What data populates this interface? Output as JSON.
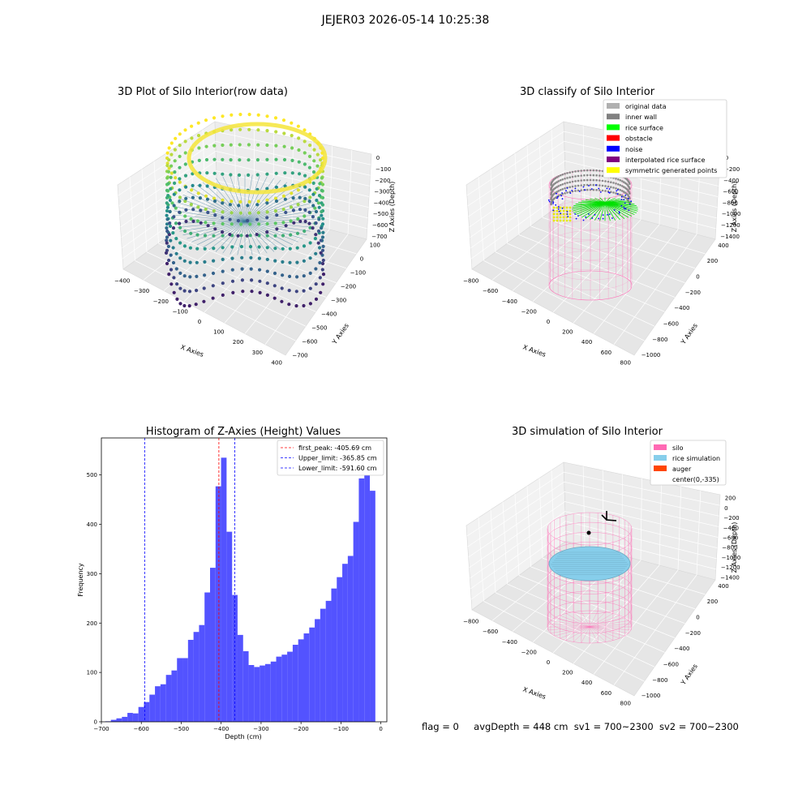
{
  "suptitle": "JEJER03 2026-05-14 10:25:38",
  "colors": {
    "pink": "#ff69b4",
    "skyblue": "#87ceeb",
    "histbar": "#4a4aff",
    "peak_line": "#ff0000",
    "limit_line": "#0000ff",
    "pane": "#f2f2f2"
  },
  "chart_data": [
    {
      "id": "raw",
      "type": "scatter",
      "title": "3D Plot of Silo Interior(row data)",
      "xlabel": "X Axies",
      "ylabel": "Y Axies",
      "zlabel": "Z Axies (Depth)",
      "xticks": [
        "−400",
        "−300",
        "−200",
        "−100",
        "0",
        "100",
        "200",
        "300",
        "400"
      ],
      "yticks": [
        "100",
        "0",
        "−100",
        "−200",
        "−300",
        "−400",
        "−500",
        "−600",
        "−700"
      ],
      "zticks": [
        "0",
        "−100",
        "−200",
        "−300",
        "−400",
        "−500",
        "−600",
        "−700"
      ],
      "xlim": [
        -420,
        420
      ],
      "ylim": [
        -720,
        120
      ],
      "zlim": [
        -700,
        0
      ],
      "colormap": "viridis"
    },
    {
      "id": "classify",
      "type": "scatter",
      "title": "3D classify of Silo Interior",
      "xlabel": "X Axies",
      "ylabel": "Y Axies",
      "zlabel": "Z Axies (Depth)",
      "xticks": [
        "−800",
        "−600",
        "−400",
        "−200",
        "0",
        "200",
        "400",
        "600",
        "800"
      ],
      "yticks": [
        "400",
        "200",
        "0",
        "−200",
        "−400",
        "−600",
        "−800",
        "−1000"
      ],
      "zticks": [
        "0",
        "−200",
        "−400",
        "−600",
        "−800",
        "−1000",
        "−1200",
        "−1400"
      ],
      "legend": [
        {
          "name": "original data",
          "color": "#b0b0b0"
        },
        {
          "name": "inner wall",
          "color": "#808080"
        },
        {
          "name": "rice surface",
          "color": "#00ff00"
        },
        {
          "name": "obstacle",
          "color": "#ff0000"
        },
        {
          "name": "noise",
          "color": "#0000ff"
        },
        {
          "name": "interpolated rice surface",
          "color": "#800080"
        },
        {
          "name": "symmetric generated points",
          "color": "#ffff00"
        }
      ]
    },
    {
      "id": "hist",
      "type": "bar",
      "title": "Histogram of Z-Axies (Height) Values",
      "xlabel": "Depth (cm)",
      "ylabel": "Frequency",
      "xlim": [
        -700,
        15
      ],
      "ylim": [
        0,
        575
      ],
      "xticks": [
        -700,
        -600,
        -500,
        -400,
        -300,
        -200,
        -100,
        0
      ],
      "xtick_labels": [
        "−700",
        "−600",
        "−500",
        "−400",
        "−300",
        "−200",
        "−100",
        "0"
      ],
      "yticks": [
        0,
        100,
        200,
        300,
        400,
        500
      ],
      "bin_start": -690,
      "bin_width": 13.8,
      "values": [
        1,
        4,
        7,
        10,
        18,
        17,
        30,
        40,
        55,
        72,
        76,
        95,
        104,
        129,
        129,
        166,
        182,
        196,
        262,
        312,
        477,
        535,
        385,
        257,
        176,
        143,
        115,
        111,
        114,
        117,
        122,
        132,
        136,
        142,
        156,
        167,
        179,
        191,
        208,
        229,
        245,
        270,
        293,
        320,
        336,
        405,
        493,
        545,
        468
      ],
      "lines": [
        {
          "name": "first_peak: -405.69 cm",
          "x": -405.69,
          "color": "#ff0000"
        },
        {
          "name": "Upper_limit: -365.85 cm",
          "x": -365.85,
          "color": "#0000ff"
        },
        {
          "name": "Lower_limit: -591.60 cm",
          "x": -591.6,
          "color": "#0000ff"
        }
      ]
    },
    {
      "id": "sim",
      "type": "scatter",
      "title": "3D simulation of Silo Interior",
      "xlabel": "X Axies",
      "ylabel": "Y Axies",
      "zlabel": "Z Axies (Depth)",
      "xticks": [
        "−800",
        "−600",
        "−400",
        "−200",
        "0",
        "200",
        "400",
        "600",
        "800"
      ],
      "yticks": [
        "400",
        "200",
        "0",
        "−200",
        "−400",
        "−600",
        "−800",
        "−1000"
      ],
      "zticks": [
        "200",
        "0",
        "−200",
        "−400",
        "−600",
        "−800",
        "−1000",
        "−1200",
        "−1400"
      ],
      "legend": [
        {
          "name": "silo",
          "color": "#ff69b4"
        },
        {
          "name": "rice simulation",
          "color": "#87ceeb"
        },
        {
          "name": "auger",
          "color": "#ff4500"
        },
        {
          "name": "center(0,-335)",
          "color": ""
        }
      ]
    }
  ],
  "footer": {
    "flag": "flag = 0",
    "avgdepth": "avgDepth = 448 cm",
    "sv1": "sv1 = 700~2300",
    "sv2": "sv2 = 700~2300"
  }
}
